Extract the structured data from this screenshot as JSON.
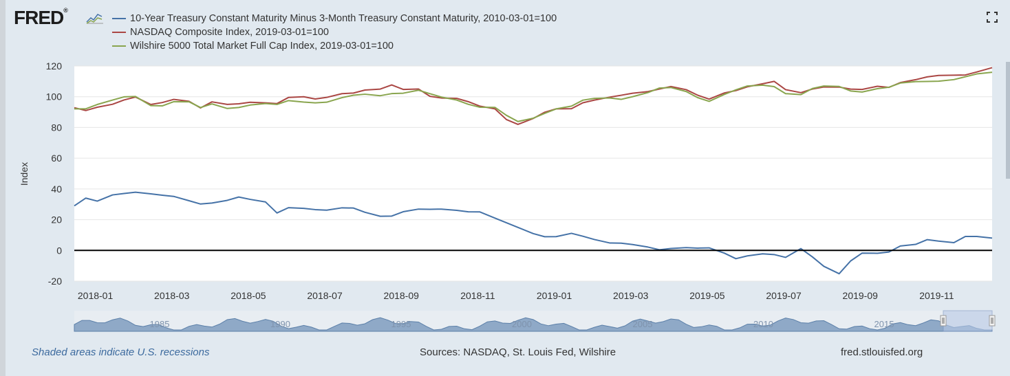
{
  "brand": {
    "name": "FRED",
    "trademark": "®"
  },
  "legend": [
    {
      "label": "10-Year Treasury Constant Maturity Minus 3-Month Treasury Constant Maturity, 2010-03-01=100",
      "color": "#4572a7"
    },
    {
      "label": "NASDAQ Composite Index, 2019-03-01=100",
      "color": "#aa4643"
    },
    {
      "label": "Wilshire 5000 Total Market Full Cap Index, 2019-03-01=100",
      "color": "#89a54e"
    }
  ],
  "footer": {
    "recession_note": "Shaded areas indicate U.S. recessions",
    "sources": "Sources: NASDAQ, St. Louis Fed, Wilshire",
    "site": "fred.stlouisfed.org"
  },
  "chart_data": {
    "type": "line",
    "ylabel": "Index",
    "xlabel": "",
    "ylim": [
      -20,
      120
    ],
    "y_ticks": [
      "120",
      "100",
      "80",
      "60",
      "40",
      "20",
      "0",
      "-20"
    ],
    "x_ticks": [
      "2018-01",
      "2018-03",
      "2018-05",
      "2018-07",
      "2018-09",
      "2018-11",
      "2019-01",
      "2019-03",
      "2019-05",
      "2019-07",
      "2019-09",
      "2019-11"
    ],
    "zero_line": true,
    "x_range": [
      "2017-12",
      "2019-12"
    ],
    "series": [
      {
        "name": "10-Year Treasury Constant Maturity Minus 3-Month Treasury Constant Maturity, 2010-03-01=100",
        "color": "#4572a7",
        "x": [
          0.0,
          0.3,
          0.6,
          1.0,
          1.3,
          1.6,
          2.0,
          2.3,
          2.6,
          3.0,
          3.3,
          3.6,
          4.0,
          4.3,
          4.6,
          5.0,
          5.3,
          5.6,
          6.0,
          6.3,
          6.6,
          7.0,
          7.3,
          7.6,
          8.0,
          8.3,
          8.6,
          9.0,
          9.3,
          9.6,
          10.0,
          10.3,
          10.6,
          11.0,
          11.3,
          11.6,
          12.0,
          12.3,
          12.6,
          13.0,
          13.3,
          13.6,
          14.0,
          14.3,
          14.6,
          15.0,
          15.3,
          15.6,
          16.0,
          16.3,
          16.6,
          17.0,
          17.3,
          17.6,
          18.0,
          18.3,
          18.6,
          19.0,
          19.3,
          19.6,
          20.0,
          20.3,
          20.6,
          21.0,
          21.3,
          21.6,
          22.0,
          22.3,
          22.6,
          23.0,
          23.3,
          23.6,
          24.0
        ],
        "values": [
          29,
          33,
          31,
          36,
          38,
          39,
          37,
          35,
          34,
          32,
          31,
          32,
          33,
          34,
          32,
          31,
          25,
          29,
          28,
          26,
          25,
          27,
          28,
          26,
          23,
          22,
          24,
          26,
          27,
          28,
          27,
          25,
          24,
          20,
          18,
          16,
          12,
          9,
          8,
          10,
          9,
          8,
          6,
          5,
          3,
          1,
          0,
          2,
          3,
          2,
          1,
          -3,
          -6,
          -3,
          -1,
          -2,
          -5,
          0,
          -5,
          -10,
          -14,
          -6,
          -2,
          -3,
          -2,
          3,
          5,
          8,
          6,
          4,
          8,
          9,
          9
        ]
      },
      {
        "name": "NASDAQ Composite Index, 2019-03-01=100",
        "color": "#aa4643",
        "x": [
          0.0,
          0.3,
          0.6,
          1.0,
          1.3,
          1.6,
          2.0,
          2.3,
          2.6,
          3.0,
          3.3,
          3.6,
          4.0,
          4.3,
          4.6,
          5.0,
          5.3,
          5.6,
          6.0,
          6.3,
          6.6,
          7.0,
          7.3,
          7.6,
          8.0,
          8.3,
          8.6,
          9.0,
          9.3,
          9.6,
          10.0,
          10.3,
          10.6,
          11.0,
          11.3,
          11.6,
          12.0,
          12.3,
          12.6,
          13.0,
          13.3,
          13.6,
          14.0,
          14.3,
          14.6,
          15.0,
          15.3,
          15.6,
          16.0,
          16.3,
          16.6,
          17.0,
          17.3,
          17.6,
          18.0,
          18.3,
          18.6,
          19.0,
          19.3,
          19.6,
          20.0,
          20.3,
          20.6,
          21.0,
          21.3,
          21.6,
          22.0,
          22.3,
          22.6,
          23.0,
          23.3,
          23.6,
          24.0
        ],
        "values": [
          92,
          91,
          94,
          96,
          98,
          99,
          94,
          96,
          99,
          98,
          93,
          96,
          94,
          95,
          97,
          97,
          96,
          99,
          99,
          98,
          100,
          103,
          103,
          104,
          104,
          107,
          105,
          106,
          101,
          99,
          98,
          96,
          94,
          93,
          86,
          82,
          85,
          89,
          92,
          93,
          97,
          98,
          99,
          100,
          102,
          104,
          106,
          107,
          104,
          100,
          98,
          103,
          105,
          107,
          108,
          109,
          104,
          103,
          106,
          107,
          106,
          104,
          104,
          107,
          107,
          110,
          111,
          112,
          113,
          114,
          115,
          117,
          119
        ]
      },
      {
        "name": "Wilshire 5000 Total Market Full Cap Index, 2019-03-01=100",
        "color": "#89a54e",
        "x": [
          0.0,
          0.3,
          0.6,
          1.0,
          1.3,
          1.6,
          2.0,
          2.3,
          2.6,
          3.0,
          3.3,
          3.6,
          4.0,
          4.3,
          4.6,
          5.0,
          5.3,
          5.6,
          6.0,
          6.3,
          6.6,
          7.0,
          7.3,
          7.6,
          8.0,
          8.3,
          8.6,
          9.0,
          9.3,
          9.6,
          10.0,
          10.3,
          10.6,
          11.0,
          11.3,
          11.6,
          12.0,
          12.3,
          12.6,
          13.0,
          13.3,
          13.6,
          14.0,
          14.3,
          14.6,
          15.0,
          15.3,
          15.6,
          16.0,
          16.3,
          16.6,
          17.0,
          17.3,
          17.6,
          18.0,
          18.3,
          18.6,
          19.0,
          19.3,
          19.6,
          20.0,
          20.3,
          20.6,
          21.0,
          21.3,
          21.6,
          22.0,
          22.3,
          22.6,
          23.0,
          23.3,
          23.6,
          24.0
        ],
        "values": [
          93,
          93,
          95,
          97,
          99,
          100,
          95,
          95,
          97,
          96,
          92,
          95,
          93,
          94,
          95,
          95,
          94,
          97,
          97,
          97,
          97,
          99,
          100,
          101,
          101,
          103,
          103,
          104,
          101,
          99,
          98,
          96,
          94,
          93,
          87,
          83,
          86,
          90,
          93,
          94,
          97,
          98,
          99,
          99,
          101,
          103,
          105,
          105,
          103,
          100,
          98,
          102,
          104,
          106,
          107,
          107,
          103,
          102,
          105,
          106,
          106,
          104,
          104,
          106,
          106,
          108,
          109,
          110,
          111,
          112,
          113,
          114,
          115
        ]
      }
    ],
    "navigator_labels": [
      "1985",
      "1990",
      "1995",
      "2000",
      "2005",
      "2010",
      "2015"
    ]
  }
}
